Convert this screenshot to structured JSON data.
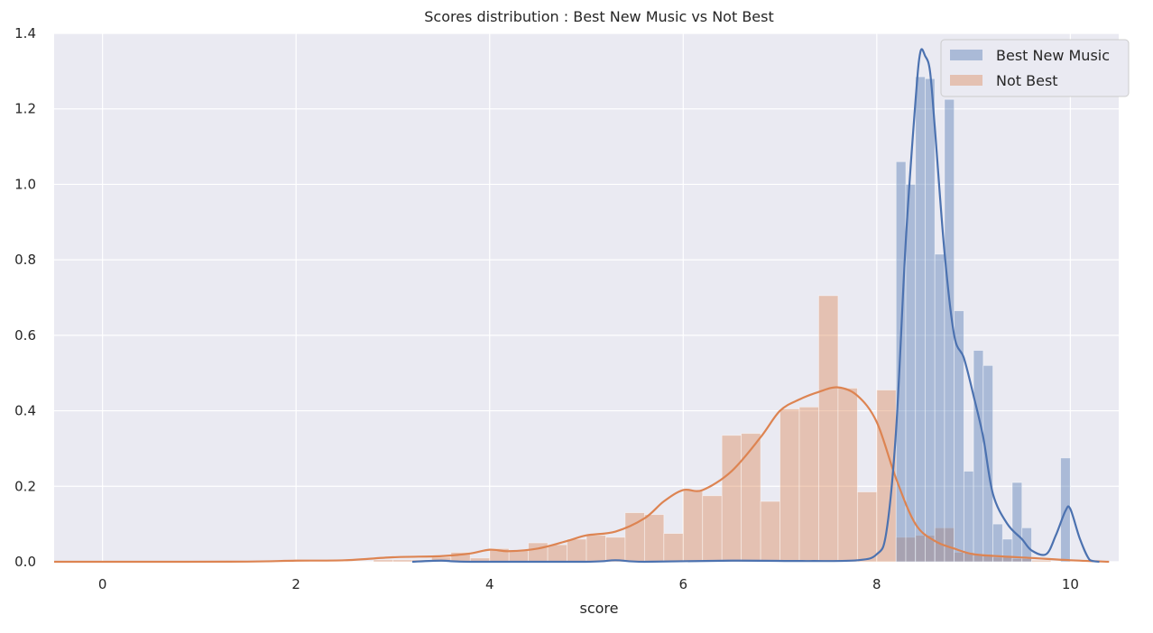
{
  "chart_data": {
    "type": "histogram_kde",
    "title": "Scores distribution : Best New Music vs Not Best",
    "xlabel": "score",
    "ylabel": "",
    "xlim": [
      -0.5,
      10.5
    ],
    "ylim": [
      0,
      1.4
    ],
    "xticks": [
      0,
      2,
      4,
      6,
      8,
      10
    ],
    "yticks": [
      0.0,
      0.2,
      0.4,
      0.6,
      0.8,
      1.0,
      1.2,
      1.4
    ],
    "grid": true,
    "legend_position": "top-right",
    "colors": {
      "background": "#eaeaf2",
      "grid": "#ffffff",
      "best": "#4c72b0",
      "not_best": "#dd8452"
    },
    "series": [
      {
        "name": "Not Best",
        "color": "#dd8452",
        "bin_width": 0.2,
        "bins": [
          {
            "x0": 2.8,
            "h": 0.005
          },
          {
            "x0": 3.0,
            "h": 0.005
          },
          {
            "x0": 3.2,
            "h": 0.005
          },
          {
            "x0": 3.4,
            "h": 0.012
          },
          {
            "x0": 3.6,
            "h": 0.025
          },
          {
            "x0": 3.8,
            "h": 0.01
          },
          {
            "x0": 4.0,
            "h": 0.035
          },
          {
            "x0": 4.2,
            "h": 0.03
          },
          {
            "x0": 4.4,
            "h": 0.05
          },
          {
            "x0": 4.6,
            "h": 0.045
          },
          {
            "x0": 4.8,
            "h": 0.06
          },
          {
            "x0": 5.0,
            "h": 0.07
          },
          {
            "x0": 5.2,
            "h": 0.065
          },
          {
            "x0": 5.4,
            "h": 0.13
          },
          {
            "x0": 5.6,
            "h": 0.125
          },
          {
            "x0": 5.8,
            "h": 0.075
          },
          {
            "x0": 6.0,
            "h": 0.19
          },
          {
            "x0": 6.2,
            "h": 0.175
          },
          {
            "x0": 6.4,
            "h": 0.335
          },
          {
            "x0": 6.6,
            "h": 0.34
          },
          {
            "x0": 6.8,
            "h": 0.16
          },
          {
            "x0": 7.0,
            "h": 0.405
          },
          {
            "x0": 7.2,
            "h": 0.41
          },
          {
            "x0": 7.4,
            "h": 0.705
          },
          {
            "x0": 7.6,
            "h": 0.46
          },
          {
            "x0": 7.8,
            "h": 0.185
          },
          {
            "x0": 8.0,
            "h": 0.455
          },
          {
            "x0": 8.2,
            "h": 0.065
          },
          {
            "x0": 8.4,
            "h": 0.07
          },
          {
            "x0": 8.6,
            "h": 0.09
          },
          {
            "x0": 8.8,
            "h": 0.025
          },
          {
            "x0": 9.0,
            "h": 0.02
          },
          {
            "x0": 9.2,
            "h": 0.012
          },
          {
            "x0": 9.4,
            "h": 0.008
          },
          {
            "x0": 9.6,
            "h": 0.004
          }
        ],
        "kde": [
          [
            -0.5,
            0.0
          ],
          [
            0.5,
            0.0
          ],
          [
            1.5,
            0.0005
          ],
          [
            2.0,
            0.003
          ],
          [
            2.5,
            0.004
          ],
          [
            3.0,
            0.012
          ],
          [
            3.5,
            0.015
          ],
          [
            3.8,
            0.022
          ],
          [
            4.0,
            0.032
          ],
          [
            4.2,
            0.028
          ],
          [
            4.5,
            0.035
          ],
          [
            4.8,
            0.055
          ],
          [
            5.0,
            0.07
          ],
          [
            5.3,
            0.08
          ],
          [
            5.6,
            0.115
          ],
          [
            5.8,
            0.16
          ],
          [
            6.0,
            0.19
          ],
          [
            6.2,
            0.19
          ],
          [
            6.5,
            0.24
          ],
          [
            6.8,
            0.33
          ],
          [
            7.0,
            0.4
          ],
          [
            7.2,
            0.43
          ],
          [
            7.4,
            0.45
          ],
          [
            7.6,
            0.462
          ],
          [
            7.8,
            0.44
          ],
          [
            8.0,
            0.37
          ],
          [
            8.2,
            0.22
          ],
          [
            8.4,
            0.1
          ],
          [
            8.6,
            0.055
          ],
          [
            8.8,
            0.035
          ],
          [
            9.0,
            0.02
          ],
          [
            9.3,
            0.014
          ],
          [
            9.6,
            0.01
          ],
          [
            10.0,
            0.004
          ],
          [
            10.4,
            0.0
          ]
        ]
      },
      {
        "name": "Best New Music",
        "color": "#4c72b0",
        "bin_width": 0.1,
        "bins": [
          {
            "x0": 8.2,
            "h": 1.06
          },
          {
            "x0": 8.3,
            "h": 1.0
          },
          {
            "x0": 8.4,
            "h": 1.285
          },
          {
            "x0": 8.5,
            "h": 1.28
          },
          {
            "x0": 8.6,
            "h": 0.815
          },
          {
            "x0": 8.7,
            "h": 1.225
          },
          {
            "x0": 8.8,
            "h": 0.665
          },
          {
            "x0": 8.9,
            "h": 0.24
          },
          {
            "x0": 9.0,
            "h": 0.56
          },
          {
            "x0": 9.1,
            "h": 0.52
          },
          {
            "x0": 9.2,
            "h": 0.1
          },
          {
            "x0": 9.3,
            "h": 0.06
          },
          {
            "x0": 9.4,
            "h": 0.21
          },
          {
            "x0": 9.5,
            "h": 0.09
          },
          {
            "x0": 9.9,
            "h": 0.275
          }
        ],
        "kde": [
          [
            3.2,
            0.0
          ],
          [
            3.5,
            0.003
          ],
          [
            3.8,
            0.0
          ],
          [
            5.0,
            0.0
          ],
          [
            5.3,
            0.004
          ],
          [
            5.6,
            0.0
          ],
          [
            6.5,
            0.003
          ],
          [
            7.3,
            0.002
          ],
          [
            7.8,
            0.004
          ],
          [
            8.0,
            0.02
          ],
          [
            8.1,
            0.08
          ],
          [
            8.2,
            0.35
          ],
          [
            8.3,
            0.85
          ],
          [
            8.4,
            1.22
          ],
          [
            8.45,
            1.35
          ],
          [
            8.5,
            1.34
          ],
          [
            8.55,
            1.3
          ],
          [
            8.6,
            1.15
          ],
          [
            8.7,
            0.82
          ],
          [
            8.8,
            0.6
          ],
          [
            8.9,
            0.54
          ],
          [
            9.0,
            0.44
          ],
          [
            9.1,
            0.33
          ],
          [
            9.2,
            0.18
          ],
          [
            9.35,
            0.1
          ],
          [
            9.5,
            0.06
          ],
          [
            9.6,
            0.03
          ],
          [
            9.75,
            0.02
          ],
          [
            9.85,
            0.07
          ],
          [
            9.95,
            0.135
          ],
          [
            10.0,
            0.14
          ],
          [
            10.1,
            0.06
          ],
          [
            10.2,
            0.005
          ],
          [
            10.3,
            0.0
          ]
        ]
      }
    ]
  }
}
